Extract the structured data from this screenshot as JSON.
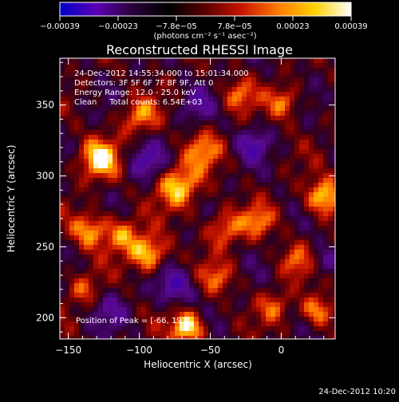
{
  "chart_data": {
    "type": "heatmap",
    "title": "Reconstructed RHESSI Image",
    "xlabel": "Heliocentric X (arcsec)",
    "ylabel": "Heliocentric Y (arcsec)",
    "xlim": [
      -156,
      38
    ],
    "ylim": [
      185,
      383
    ],
    "xticks": [
      -150,
      -100,
      -50,
      0
    ],
    "yticks": [
      200,
      250,
      300,
      350
    ],
    "xtick_labels": [
      "−150",
      "−100",
      "−50",
      "0"
    ],
    "ytick_labels": [
      "200",
      "250",
      "300",
      "350"
    ],
    "colorbar": {
      "range": [
        -0.00039,
        0.00039
      ],
      "tick_labels": [
        "−0.00039",
        "−0.00023",
        "−7.8e−05",
        "7.8e−05",
        "0.00023",
        "0.00039"
      ],
      "unit_label": "(photons cm⁻² s⁻¹ asec⁻²)",
      "colors": [
        "#0000c8",
        "#5a00b4",
        "#2a003a",
        "#000000",
        "#5a0000",
        "#c81400",
        "#ff7a00",
        "#ffd000",
        "#ffffff"
      ]
    },
    "annotations": [
      "24-Dec-2012 14:55:34.000 to 15:01:34.000",
      "Detectors: 3F 5F 6F 7F 8F 9F, Att 0",
      "Energy Range: 12.0 - 25.0 keV",
      "Clean     Total counts: 6.54E+03"
    ],
    "peak_label": "Position of Peak = [-66, 193]",
    "hot_spots": [
      {
        "x": -128,
        "y": 312,
        "amp": 0.85,
        "sigma": 10
      },
      {
        "x": -135,
        "y": 262,
        "amp": 0.7,
        "sigma": 9
      },
      {
        "x": -100,
        "y": 342,
        "amp": 0.6,
        "sigma": 9
      },
      {
        "x": -72,
        "y": 293,
        "amp": 0.8,
        "sigma": 11
      },
      {
        "x": -55,
        "y": 318,
        "amp": 0.55,
        "sigma": 9
      },
      {
        "x": -93,
        "y": 245,
        "amp": 0.85,
        "sigma": 9
      },
      {
        "x": -112,
        "y": 258,
        "amp": 0.6,
        "sigma": 9
      },
      {
        "x": -40,
        "y": 263,
        "amp": 0.6,
        "sigma": 9
      },
      {
        "x": -16,
        "y": 268,
        "amp": 0.55,
        "sigma": 8
      },
      {
        "x": 30,
        "y": 285,
        "amp": 0.9,
        "sigma": 9
      },
      {
        "x": 2,
        "y": 352,
        "amp": 0.6,
        "sigma": 8
      },
      {
        "x": -30,
        "y": 357,
        "amp": 0.55,
        "sigma": 8
      },
      {
        "x": -66,
        "y": 193,
        "amp": 1.0,
        "sigma": 8
      },
      {
        "x": 25,
        "y": 205,
        "amp": 0.7,
        "sigma": 8
      },
      {
        "x": -5,
        "y": 208,
        "amp": 0.45,
        "sigma": 8
      },
      {
        "x": 10,
        "y": 240,
        "amp": 0.5,
        "sigma": 8
      },
      {
        "x": -140,
        "y": 220,
        "amp": 0.45,
        "sigma": 8
      },
      {
        "x": -45,
        "y": 228,
        "amp": 0.5,
        "sigma": 8
      }
    ],
    "cold_spots": [
      {
        "x": -95,
        "y": 310,
        "amp": 0.55,
        "sigma": 9
      },
      {
        "x": -20,
        "y": 322,
        "amp": 0.5,
        "sigma": 8
      },
      {
        "x": -75,
        "y": 222,
        "amp": 0.6,
        "sigma": 9
      },
      {
        "x": -60,
        "y": 350,
        "amp": 0.4,
        "sigma": 8
      },
      {
        "x": 30,
        "y": 240,
        "amp": 0.4,
        "sigma": 7
      },
      {
        "x": -120,
        "y": 205,
        "amp": 0.35,
        "sigma": 9
      }
    ],
    "grid": false
  },
  "footer": {
    "timestamp": "24-Dec-2012 10:20"
  }
}
